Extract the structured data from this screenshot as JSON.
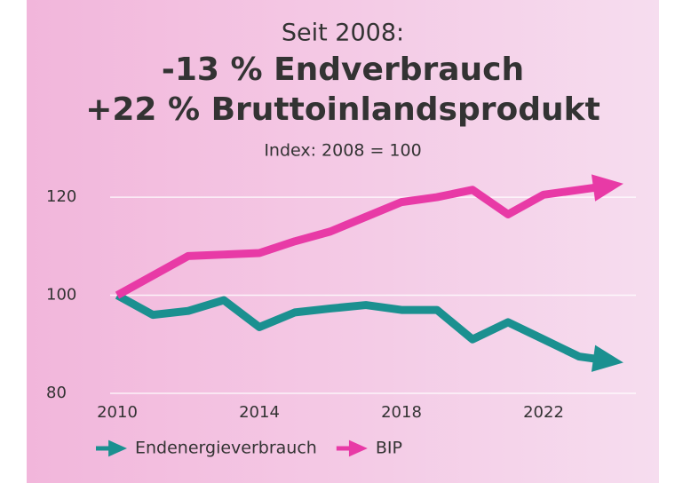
{
  "chart_data": {
    "type": "line",
    "supertitle": "Seit 2008:",
    "title": [
      "-13 % Endverbrauch",
      "+22 % Bruttoinlandsprodukt"
    ],
    "subtitle": "Index: 2008 = 100",
    "x": [
      2010,
      2011,
      2012,
      2013,
      2014,
      2015,
      2016,
      2017,
      2018,
      2019,
      2020,
      2021,
      2022,
      2023,
      2024
    ],
    "series": [
      {
        "name": "Endenergieverbrauch",
        "color": "#1b9090",
        "values": [
          100,
          96,
          96.8,
          99,
          93.5,
          96.5,
          97.3,
          98,
          97,
          97,
          91,
          94.5,
          91,
          87.5,
          86.5
        ]
      },
      {
        "name": "BIP",
        "color": "#e83aa6",
        "values": [
          100,
          104,
          108,
          108.3,
          108.6,
          111,
          113,
          116,
          119,
          120,
          121.5,
          116.5,
          120.5,
          121.5,
          122.5
        ]
      }
    ],
    "xlim": [
      2009.8,
      2024.6
    ],
    "xticks": [
      2010,
      2014,
      2018,
      2022
    ],
    "ylim": [
      78,
      124
    ],
    "yticks": [
      80,
      100,
      120
    ],
    "grid": true,
    "legend": "bottom"
  }
}
